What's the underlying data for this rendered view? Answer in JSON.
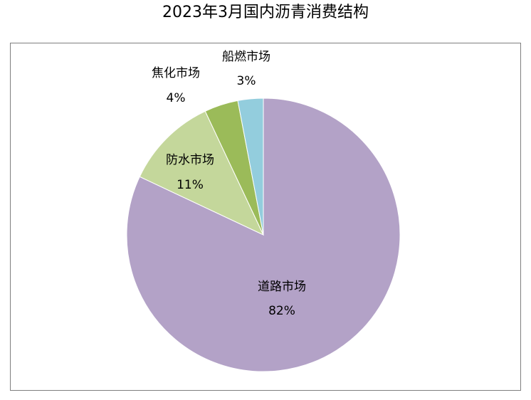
{
  "chart_data": {
    "type": "pie",
    "title": "2023年3月国内沥青消费结构",
    "slices": [
      {
        "label": "道路市场",
        "value": 82,
        "value_label": "82%",
        "color": "#b3a2c7"
      },
      {
        "label": "防水市场",
        "value": 11,
        "value_label": "11%",
        "color": "#c4d79b"
      },
      {
        "label": "焦化市场",
        "value": 4,
        "value_label": "4%",
        "color": "#9bbb59"
      },
      {
        "label": "船燃市场",
        "value": 3,
        "value_label": "3%",
        "color": "#93cddd"
      }
    ],
    "start": "12 o'clock",
    "direction": "clockwise",
    "legend": "none"
  }
}
